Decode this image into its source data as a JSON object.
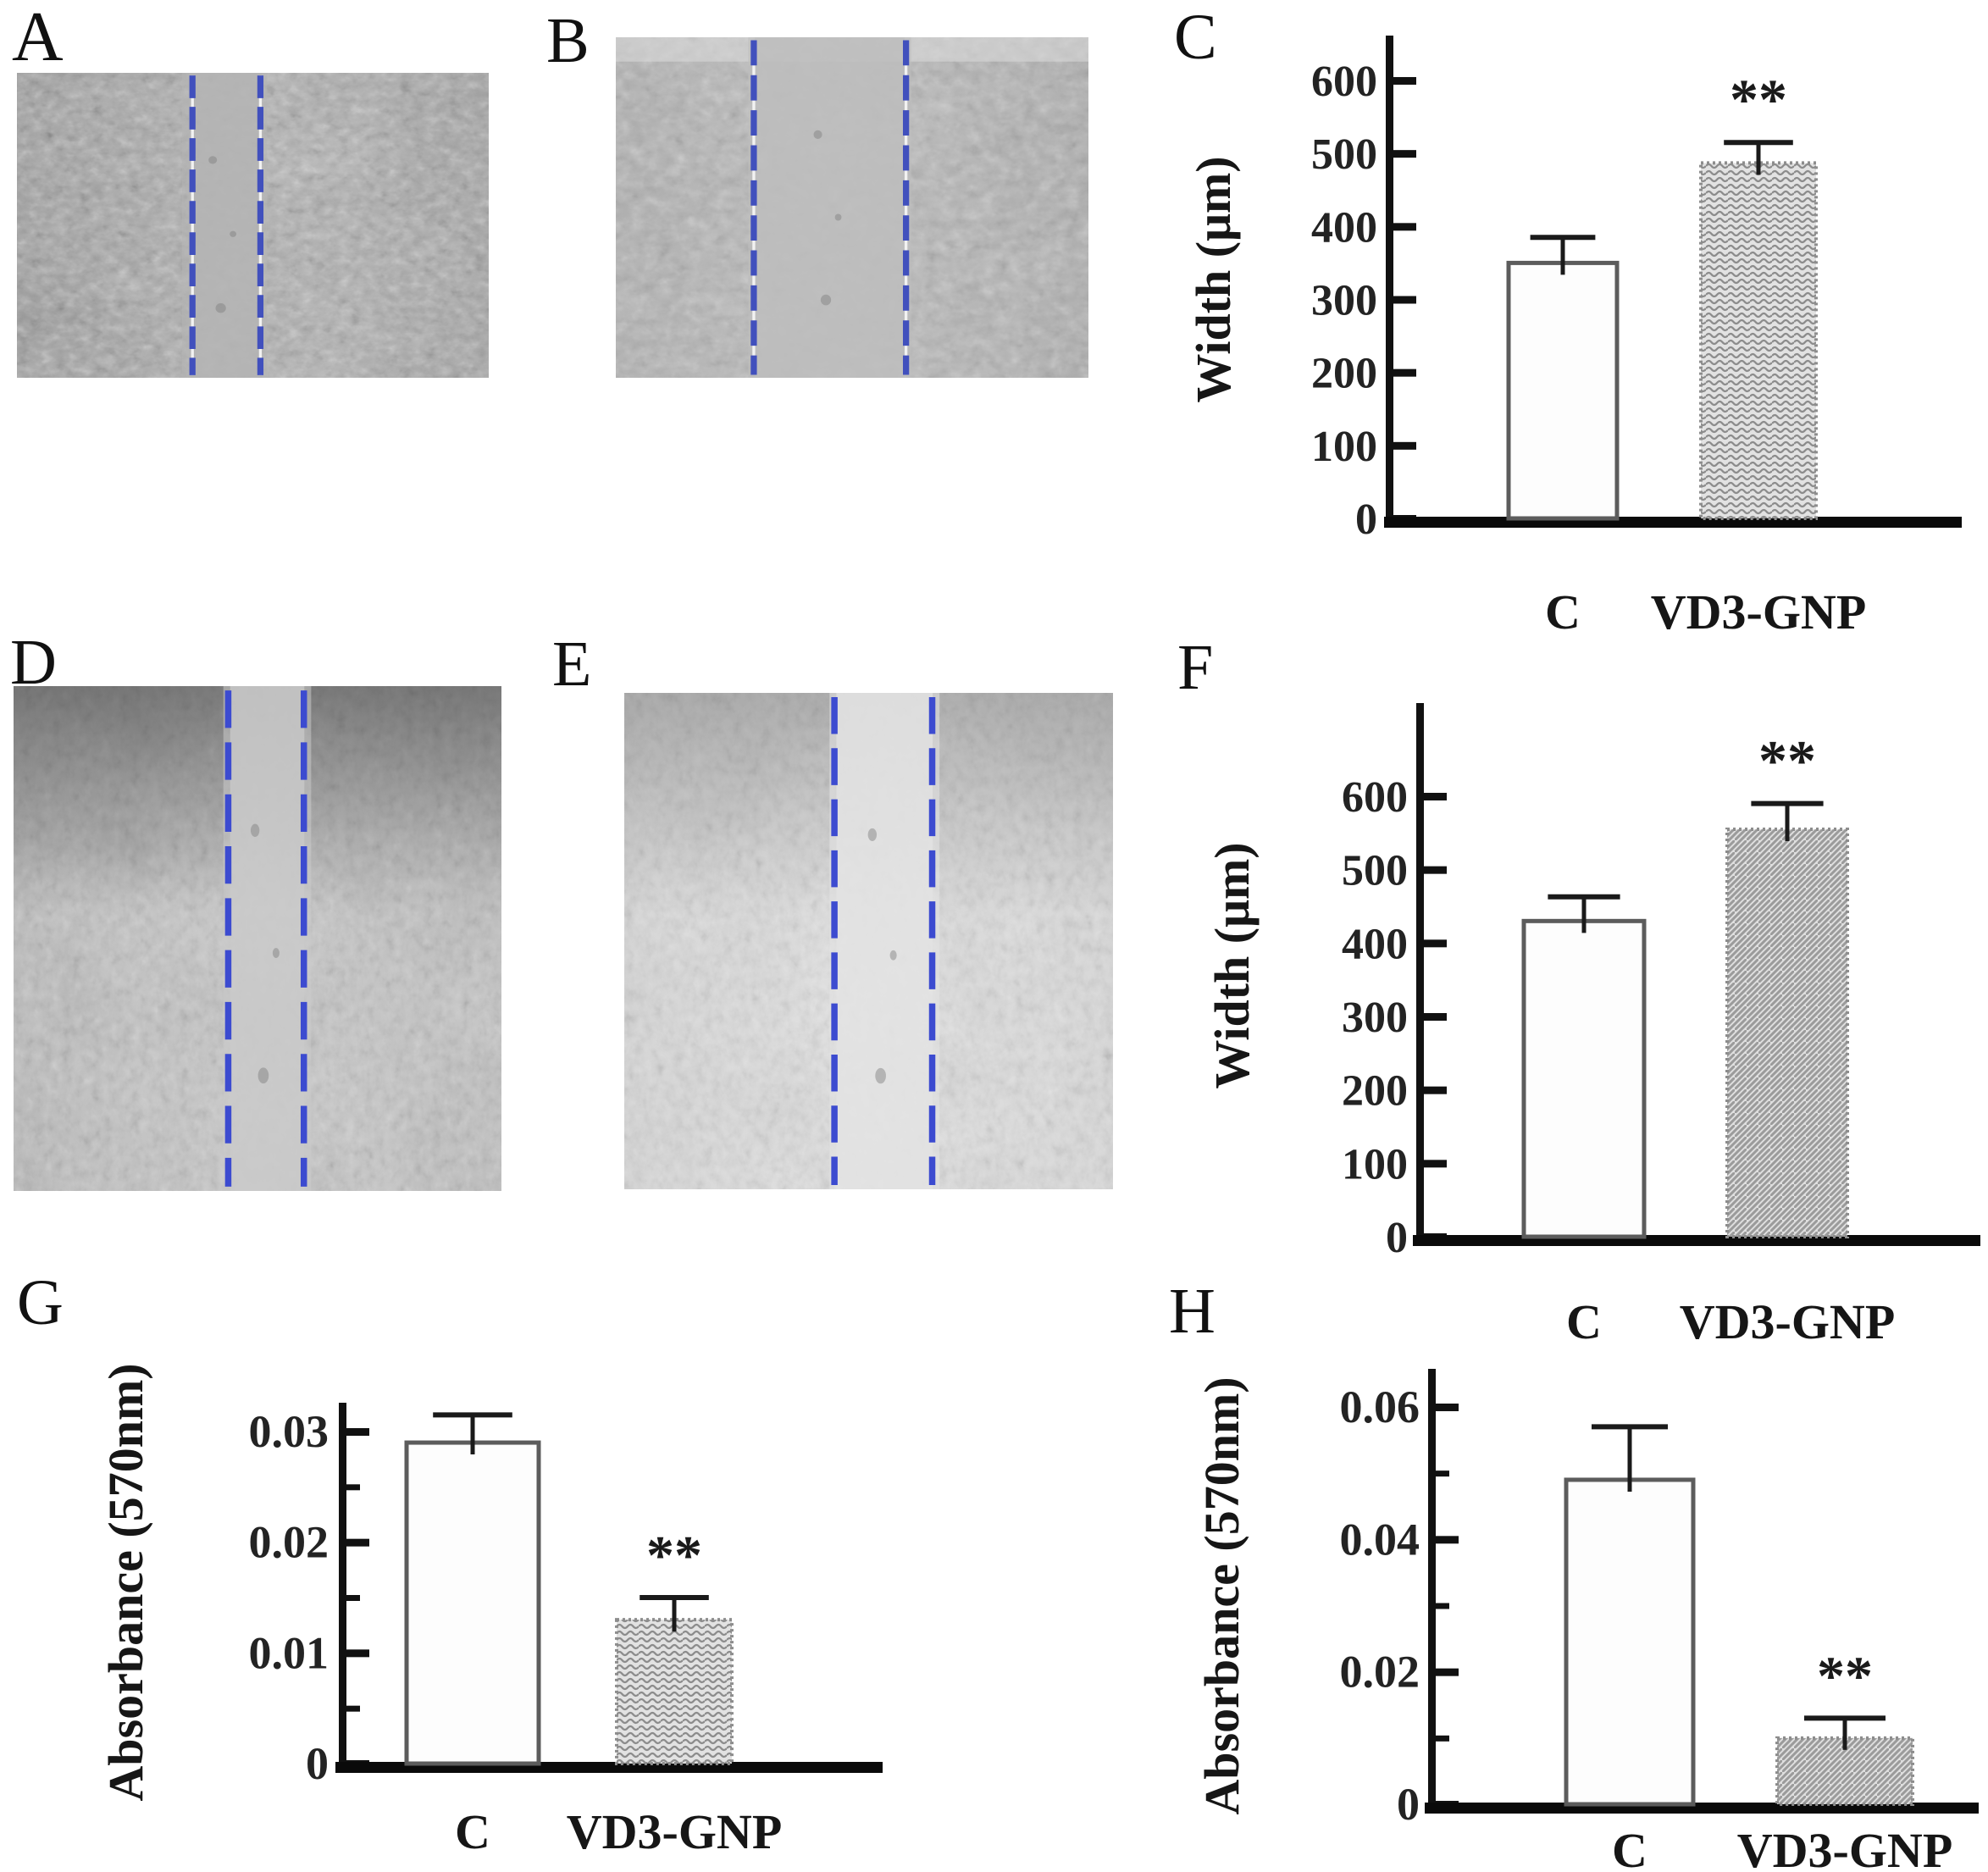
{
  "panels": {
    "A": "A",
    "B": "B",
    "C": "C",
    "D": "D",
    "E": "E",
    "F": "F",
    "G": "G",
    "H": "H"
  },
  "micrographs": [
    {
      "panel": "A",
      "lines_pct": [
        37.2,
        51.6
      ],
      "gap_pct": [
        35.0,
        53.0
      ],
      "line_color": "#4150bd"
    },
    {
      "panel": "B",
      "lines_pct": [
        29.2,
        61.4
      ],
      "gap_pct": [
        28.0,
        62.5
      ],
      "line_color": "#4150bd"
    },
    {
      "panel": "D",
      "lines_pct": [
        44.0,
        59.5
      ],
      "gap_pct": [
        43.0,
        61.0
      ],
      "line_color": "#3c4bd0"
    },
    {
      "panel": "E",
      "lines_pct": [
        43.0,
        63.0
      ],
      "gap_pct": [
        42.0,
        64.5
      ],
      "line_color": "#3c4bd0"
    }
  ],
  "chart_data": [
    {
      "type": "bar",
      "panel": "C",
      "title": "",
      "xlabel": "",
      "ylabel": "Width (μm)",
      "categories": [
        "C",
        "VD3-GNP"
      ],
      "values": [
        350,
        487
      ],
      "errors": [
        35,
        28
      ],
      "significance": [
        "",
        "**"
      ],
      "patterns": [
        "plain",
        "wavy"
      ],
      "yticks": [
        0,
        100,
        200,
        300,
        400,
        500,
        600
      ],
      "ylim": [
        0,
        660
      ],
      "grid": false,
      "legend": false
    },
    {
      "type": "bar",
      "panel": "F",
      "title": "",
      "xlabel": "",
      "ylabel": "Width (μm)",
      "categories": [
        "C",
        "VD3-GNP"
      ],
      "values": [
        430,
        555
      ],
      "errors": [
        33,
        35
      ],
      "significance": [
        "",
        "**"
      ],
      "patterns": [
        "plain",
        "diag"
      ],
      "yticks": [
        0,
        100,
        200,
        300,
        400,
        500,
        600
      ],
      "ylim": [
        0,
        720
      ],
      "grid": false,
      "legend": false
    },
    {
      "type": "bar",
      "panel": "G",
      "title": "",
      "xlabel": "",
      "ylabel": "Absorbance (570nm)",
      "categories": [
        "C",
        "VD3-GNP"
      ],
      "values": [
        0.029,
        0.013
      ],
      "errors": [
        0.0025,
        0.002
      ],
      "significance": [
        "",
        "**"
      ],
      "patterns": [
        "plain",
        "wavy"
      ],
      "yticks": [
        0,
        0.01,
        0.02,
        0.03
      ],
      "yticks_minor": [
        0.005,
        0.015,
        0.025
      ],
      "ylim": [
        0,
        0.0335
      ],
      "grid": false,
      "legend": false
    },
    {
      "type": "bar",
      "panel": "H",
      "title": "",
      "xlabel": "",
      "ylabel": "Absorbance (570nm)",
      "categories": [
        "C",
        "VD3-GNP"
      ],
      "values": [
        0.049,
        0.01
      ],
      "errors": [
        0.008,
        0.003
      ],
      "significance": [
        "",
        "**"
      ],
      "patterns": [
        "plain",
        "diag"
      ],
      "yticks": [
        0,
        0.02,
        0.04,
        0.06
      ],
      "yticks_minor": [
        0.01,
        0.03,
        0.05
      ],
      "ylim": [
        0,
        0.066
      ],
      "grid": false,
      "legend": false
    }
  ]
}
